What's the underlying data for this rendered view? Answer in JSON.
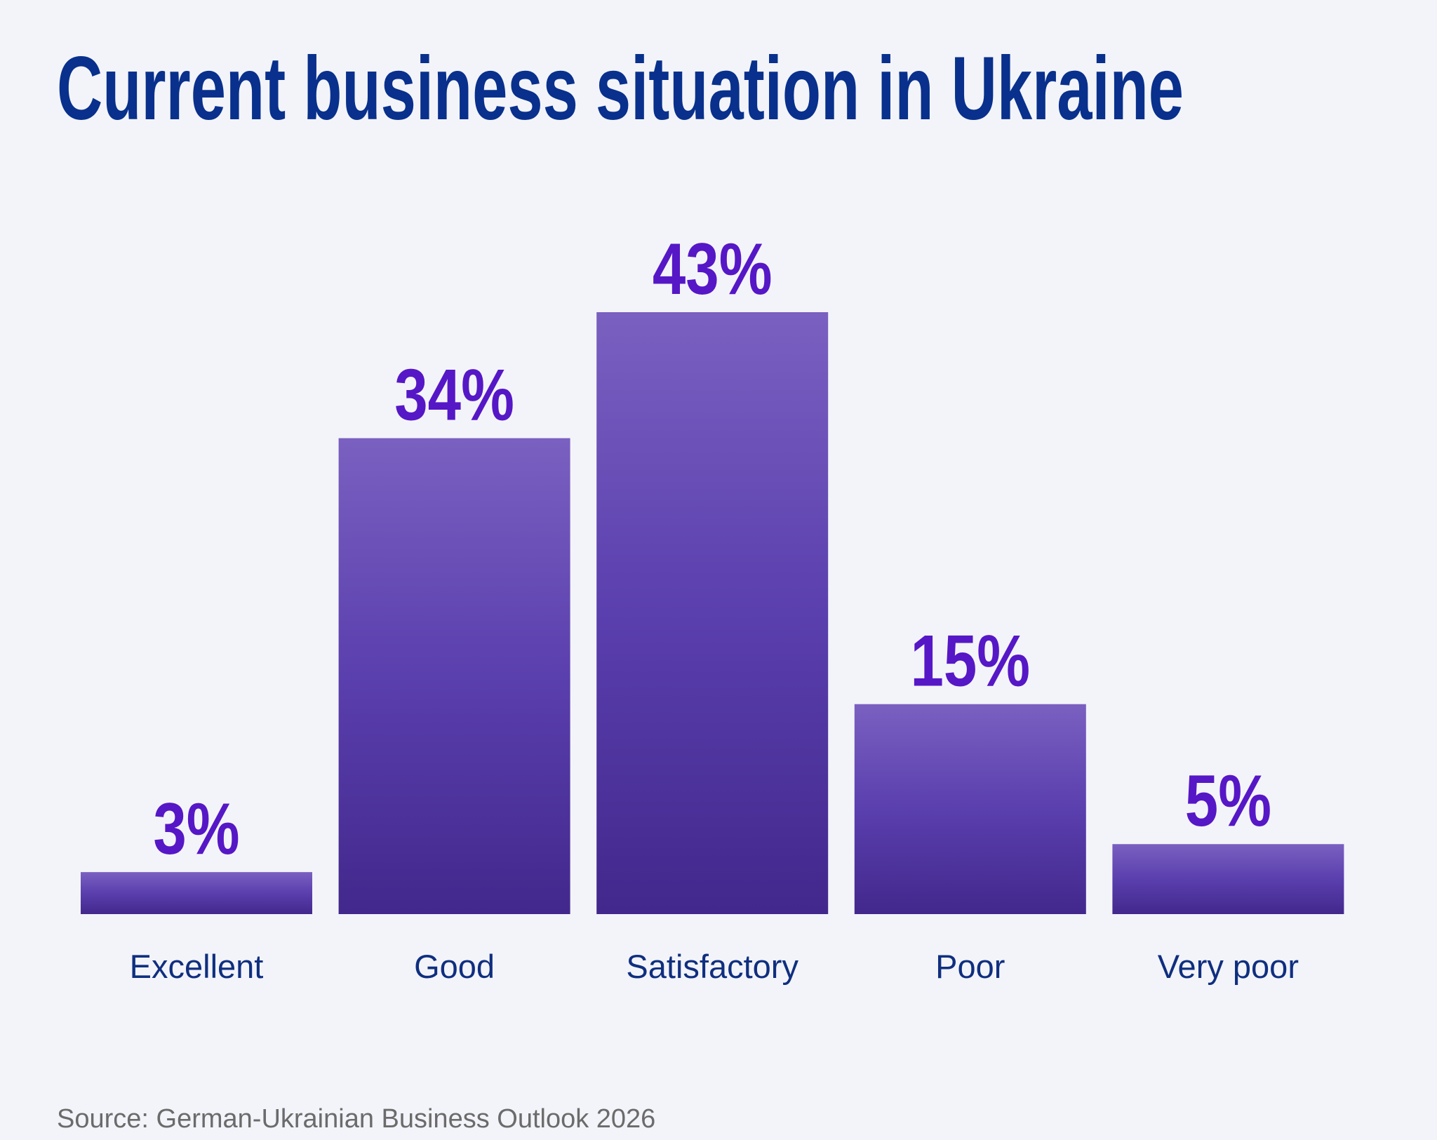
{
  "chart_data": {
    "type": "bar",
    "title": "Current business situation in Ukraine",
    "categories": [
      "Excellent",
      "Good",
      "Satisfactory",
      "Poor",
      "Very poor"
    ],
    "values": [
      3,
      34,
      43,
      15,
      5
    ],
    "value_labels": [
      "3%",
      "34%",
      "43%",
      "15%",
      "5%"
    ],
    "color": "#5a3fae",
    "source": "Source: German-Ukrainian Business Outlook 2026"
  }
}
